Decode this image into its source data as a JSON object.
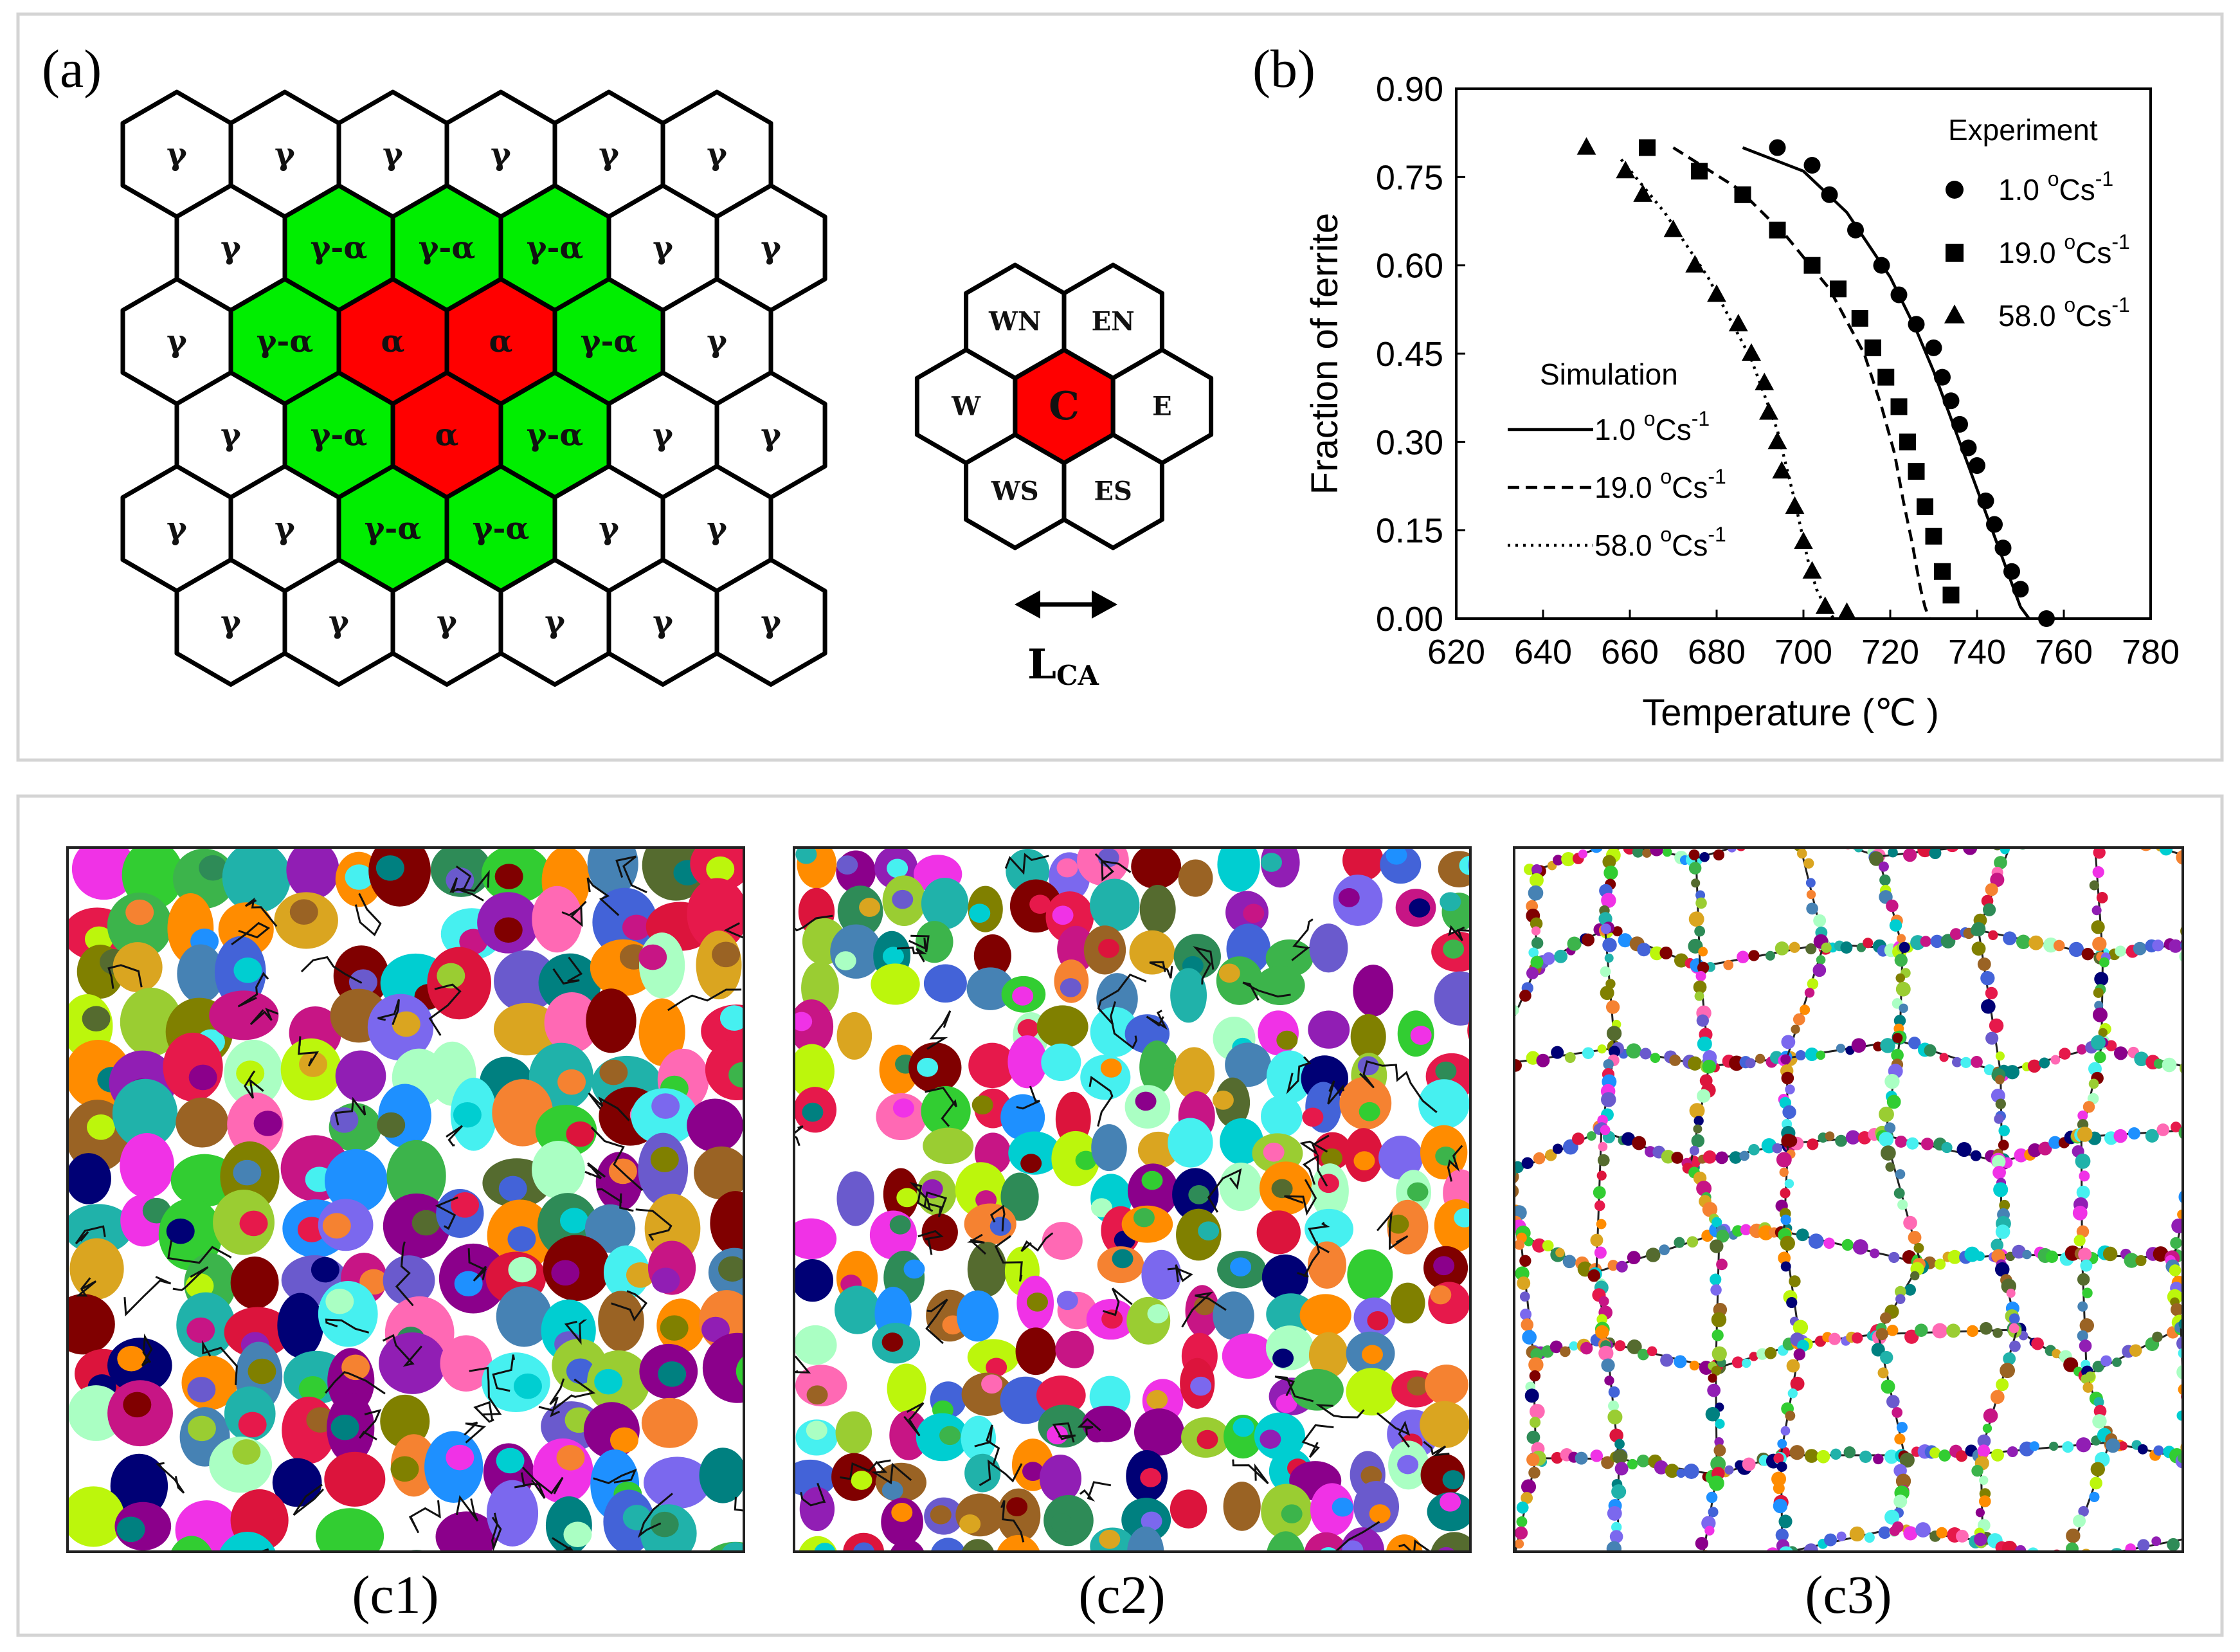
{
  "panels": {
    "a": {
      "tag": "(a)",
      "hex_grid": [
        [
          {
            "label": "γ",
            "fill": "white"
          },
          {
            "label": "γ",
            "fill": "white"
          },
          {
            "label": "γ",
            "fill": "white"
          },
          {
            "label": "γ",
            "fill": "white"
          },
          {
            "label": "γ",
            "fill": "white"
          },
          {
            "label": "γ",
            "fill": "white"
          }
        ],
        [
          {
            "label": "γ",
            "fill": "white"
          },
          {
            "label": "γ-α",
            "fill": "green"
          },
          {
            "label": "γ-α",
            "fill": "green"
          },
          {
            "label": "γ-α",
            "fill": "green"
          },
          {
            "label": "γ",
            "fill": "white"
          },
          {
            "label": "γ",
            "fill": "white"
          }
        ],
        [
          {
            "label": "γ",
            "fill": "white"
          },
          {
            "label": "γ-α",
            "fill": "green"
          },
          {
            "label": "α",
            "fill": "red"
          },
          {
            "label": "α",
            "fill": "red"
          },
          {
            "label": "γ-α",
            "fill": "green"
          },
          {
            "label": "γ",
            "fill": "white"
          }
        ],
        [
          {
            "label": "γ",
            "fill": "white"
          },
          {
            "label": "γ-α",
            "fill": "green"
          },
          {
            "label": "α",
            "fill": "red"
          },
          {
            "label": "γ-α",
            "fill": "green"
          },
          {
            "label": "γ",
            "fill": "white"
          },
          {
            "label": "γ",
            "fill": "white"
          }
        ],
        [
          {
            "label": "γ",
            "fill": "white"
          },
          {
            "label": "γ",
            "fill": "white"
          },
          {
            "label": "γ-α",
            "fill": "green"
          },
          {
            "label": "γ-α",
            "fill": "green"
          },
          {
            "label": "γ",
            "fill": "white"
          },
          {
            "label": "γ",
            "fill": "white"
          }
        ],
        [
          {
            "label": "γ",
            "fill": "white"
          },
          {
            "label": "γ",
            "fill": "white"
          },
          {
            "label": "γ",
            "fill": "white"
          },
          {
            "label": "γ",
            "fill": "white"
          },
          {
            "label": "γ",
            "fill": "white"
          },
          {
            "label": "γ",
            "fill": "white"
          }
        ]
      ],
      "neighborhood": {
        "center": "C",
        "neighbors": [
          "WN",
          "EN",
          "W",
          "E",
          "WS",
          "ES"
        ],
        "length_label": "L",
        "length_sub": "CA"
      },
      "colors": {
        "red": "#ff0000",
        "green": "#00ee00",
        "white": "#ffffff"
      }
    },
    "b": {
      "tag": "(b)",
      "chart_data": {
        "type": "scatter",
        "xlabel": "Temperature (℃ )",
        "ylabel": "Fraction of ferrite",
        "xlim": [
          620,
          780
        ],
        "ylim": [
          0.0,
          0.9
        ],
        "xticks": [
          "620",
          "640",
          "660",
          "680",
          "700",
          "720",
          "740",
          "760",
          "780"
        ],
        "yticks": [
          "0.00",
          "0.15",
          "0.30",
          "0.45",
          "0.60",
          "0.75",
          "0.90"
        ],
        "legend_experiment_title": "Experiment",
        "legend_simulation_title": "Simulation",
        "experiment": [
          {
            "name": "1.0 °Cs-1",
            "label_main": "1.0 ",
            "label_unit": "Cs",
            "marker": "circle",
            "x": [
              694,
              702,
              706,
              712,
              718,
              722,
              726,
              730,
              732,
              734,
              736,
              738,
              740,
              742,
              744,
              746,
              748,
              750,
              756
            ],
            "y": [
              0.8,
              0.77,
              0.72,
              0.66,
              0.6,
              0.55,
              0.5,
              0.46,
              0.41,
              0.37,
              0.33,
              0.29,
              0.26,
              0.2,
              0.16,
              0.12,
              0.08,
              0.05,
              0.0
            ]
          },
          {
            "name": "19.0 °Cs-1",
            "label_main": "19.0 ",
            "label_unit": "Cs",
            "marker": "square",
            "x": [
              664,
              676,
              686,
              694,
              702,
              708,
              713,
              716,
              719,
              722,
              724,
              726,
              728,
              730,
              732,
              734
            ],
            "y": [
              0.8,
              0.76,
              0.72,
              0.66,
              0.6,
              0.56,
              0.51,
              0.46,
              0.41,
              0.36,
              0.3,
              0.25,
              0.19,
              0.14,
              0.08,
              0.04
            ]
          },
          {
            "name": "58.0 °Cs-1",
            "label_main": "58.0 ",
            "label_unit": "Cs",
            "marker": "triangle",
            "x": [
              650,
              659,
              663,
              670,
              675,
              680,
              685,
              688,
              691,
              692,
              694,
              695,
              698,
              700,
              702,
              705,
              710
            ],
            "y": [
              0.8,
              0.76,
              0.72,
              0.66,
              0.6,
              0.55,
              0.5,
              0.45,
              0.4,
              0.35,
              0.3,
              0.25,
              0.19,
              0.13,
              0.08,
              0.02,
              0.01
            ]
          }
        ],
        "simulation": [
          {
            "name": "1.0 °Cs-1",
            "label_main": "1.0 ",
            "label_unit": "Cs",
            "dash": "solid",
            "x": [
              686,
              700,
              710,
              720,
              726,
              730,
              734,
              738,
              742,
              746,
              748,
              750,
              752
            ],
            "y": [
              0.8,
              0.76,
              0.69,
              0.58,
              0.49,
              0.42,
              0.34,
              0.26,
              0.18,
              0.1,
              0.06,
              0.02,
              0.0
            ]
          },
          {
            "name": "19.0 °Cs-1",
            "label_main": "19.0 ",
            "label_unit": "Cs",
            "dash": "dashed",
            "x": [
              670,
              685,
              696,
              706,
              714,
              718,
              721,
              723,
              725,
              726,
              727,
              728,
              729
            ],
            "y": [
              0.8,
              0.73,
              0.65,
              0.56,
              0.45,
              0.36,
              0.28,
              0.2,
              0.13,
              0.09,
              0.05,
              0.02,
              0.0
            ]
          },
          {
            "name": "58.0 °Cs-1",
            "label_main": "58.0 ",
            "label_unit": "Cs",
            "dash": "dotted",
            "x": [
              658,
              668,
              678,
              688,
              694,
              698,
              701,
              703,
              705,
              707
            ],
            "y": [
              0.78,
              0.69,
              0.58,
              0.44,
              0.32,
              0.2,
              0.1,
              0.05,
              0.02,
              0.0
            ]
          }
        ]
      }
    },
    "c": {
      "tags": [
        "(c1)",
        "(c2)",
        "(c3)"
      ],
      "grain_density": [
        0.85,
        0.7,
        0.15
      ],
      "grain_count_hint": [
        "coarse",
        "medium",
        "boundary"
      ]
    }
  }
}
